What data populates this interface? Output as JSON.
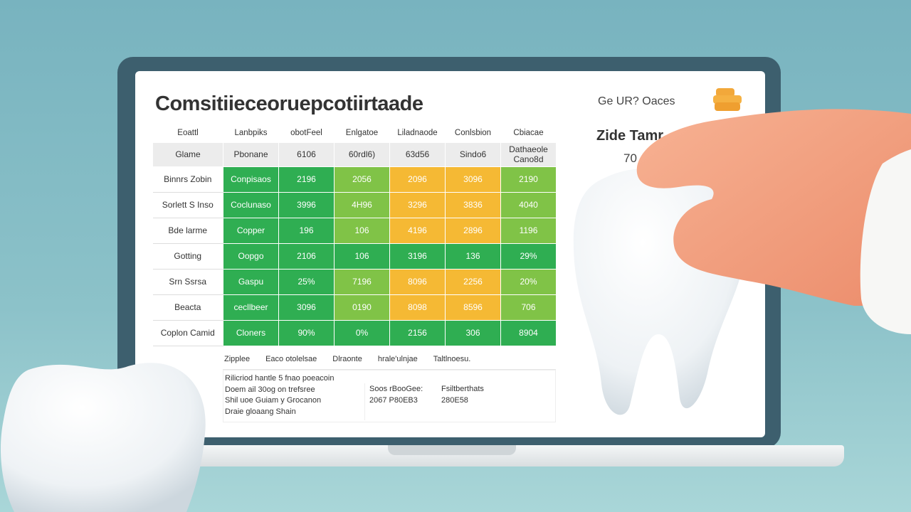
{
  "title": "Comsitiieceoruepcotiirtaade",
  "table": {
    "header1": [
      "Eoattl",
      "Lanbpiks",
      "obotFeel",
      "Enlgatoe",
      "Liladnaode",
      "Conlsbion",
      "Cbiacae"
    ],
    "header2": [
      "Glame",
      "Pbonane",
      "6106",
      "60rdl6)",
      "63d56",
      "Sindo6",
      "Dathaeole Cano8d"
    ],
    "rows": [
      {
        "label": "Binnrs Zobin",
        "cells": [
          "Conpisaos",
          "2196",
          "2056",
          "2096",
          "3096",
          "2190"
        ],
        "colors": [
          "dg",
          "dg",
          "lg",
          "or",
          "or",
          "lg"
        ]
      },
      {
        "label": "Sorlett S Inso",
        "cells": [
          "Coclunaso",
          "3996",
          "4H96",
          "3296",
          "3836",
          "4040"
        ],
        "colors": [
          "dg",
          "dg",
          "lg",
          "or",
          "or",
          "lg"
        ]
      },
      {
        "label": "Bde larme",
        "cells": [
          "Copper",
          "196",
          "106",
          "4196",
          "2896",
          "1196"
        ],
        "colors": [
          "dg",
          "dg",
          "lg",
          "or",
          "or",
          "lg"
        ]
      },
      {
        "label": "Gotting",
        "cells": [
          "Oopgo",
          "2106",
          "106",
          "3196",
          "136",
          "29%"
        ],
        "colors": [
          "dg",
          "dg",
          "dg",
          "dg",
          "dg",
          "dg"
        ]
      },
      {
        "label": "Srn Ssrsa",
        "cells": [
          "Gaspu",
          "25%",
          "7196",
          "8096",
          "2256",
          "20%"
        ],
        "colors": [
          "dg",
          "dg",
          "lg",
          "or",
          "or",
          "lg"
        ]
      },
      {
        "label": "Beacta",
        "cells": [
          "cecllbeer",
          "3096",
          "0190",
          "8098",
          "8596",
          "706"
        ],
        "colors": [
          "dg",
          "dg",
          "lg",
          "or",
          "or",
          "lg"
        ]
      },
      {
        "label": "Coplon Camid",
        "cells": [
          "Cloners",
          "90%",
          "0%",
          "2156",
          "306",
          "8904"
        ],
        "colors": [
          "dg",
          "dg",
          "dg",
          "dg",
          "dg",
          "dg"
        ]
      }
    ]
  },
  "legend": [
    "Zipplee",
    "Eaco otolelsae",
    "Dlraonte",
    "hrale'ulnjae",
    "Taltlnoesu."
  ],
  "notes": {
    "col1": [
      "Rilicriod hantle 5 fnao poeacoin",
      "Doem ail 30og on trefsree",
      "Shil uoe Guiam y Grocanon",
      "Draie gloaang Shain"
    ],
    "col2": [
      "Soos rBooGee:",
      "2067 P80EB3"
    ],
    "col3": [
      "Fsiltberthats",
      "280E58"
    ]
  },
  "side": {
    "label": "Ge UR? Oaces",
    "heading": "Zide Tamr",
    "value": "70"
  },
  "colors": {
    "dg": "#2fae52",
    "lg": "#80c347",
    "or": "#f5b934",
    "bezel": "#3d5f6e",
    "hand": "#f3a07f"
  }
}
